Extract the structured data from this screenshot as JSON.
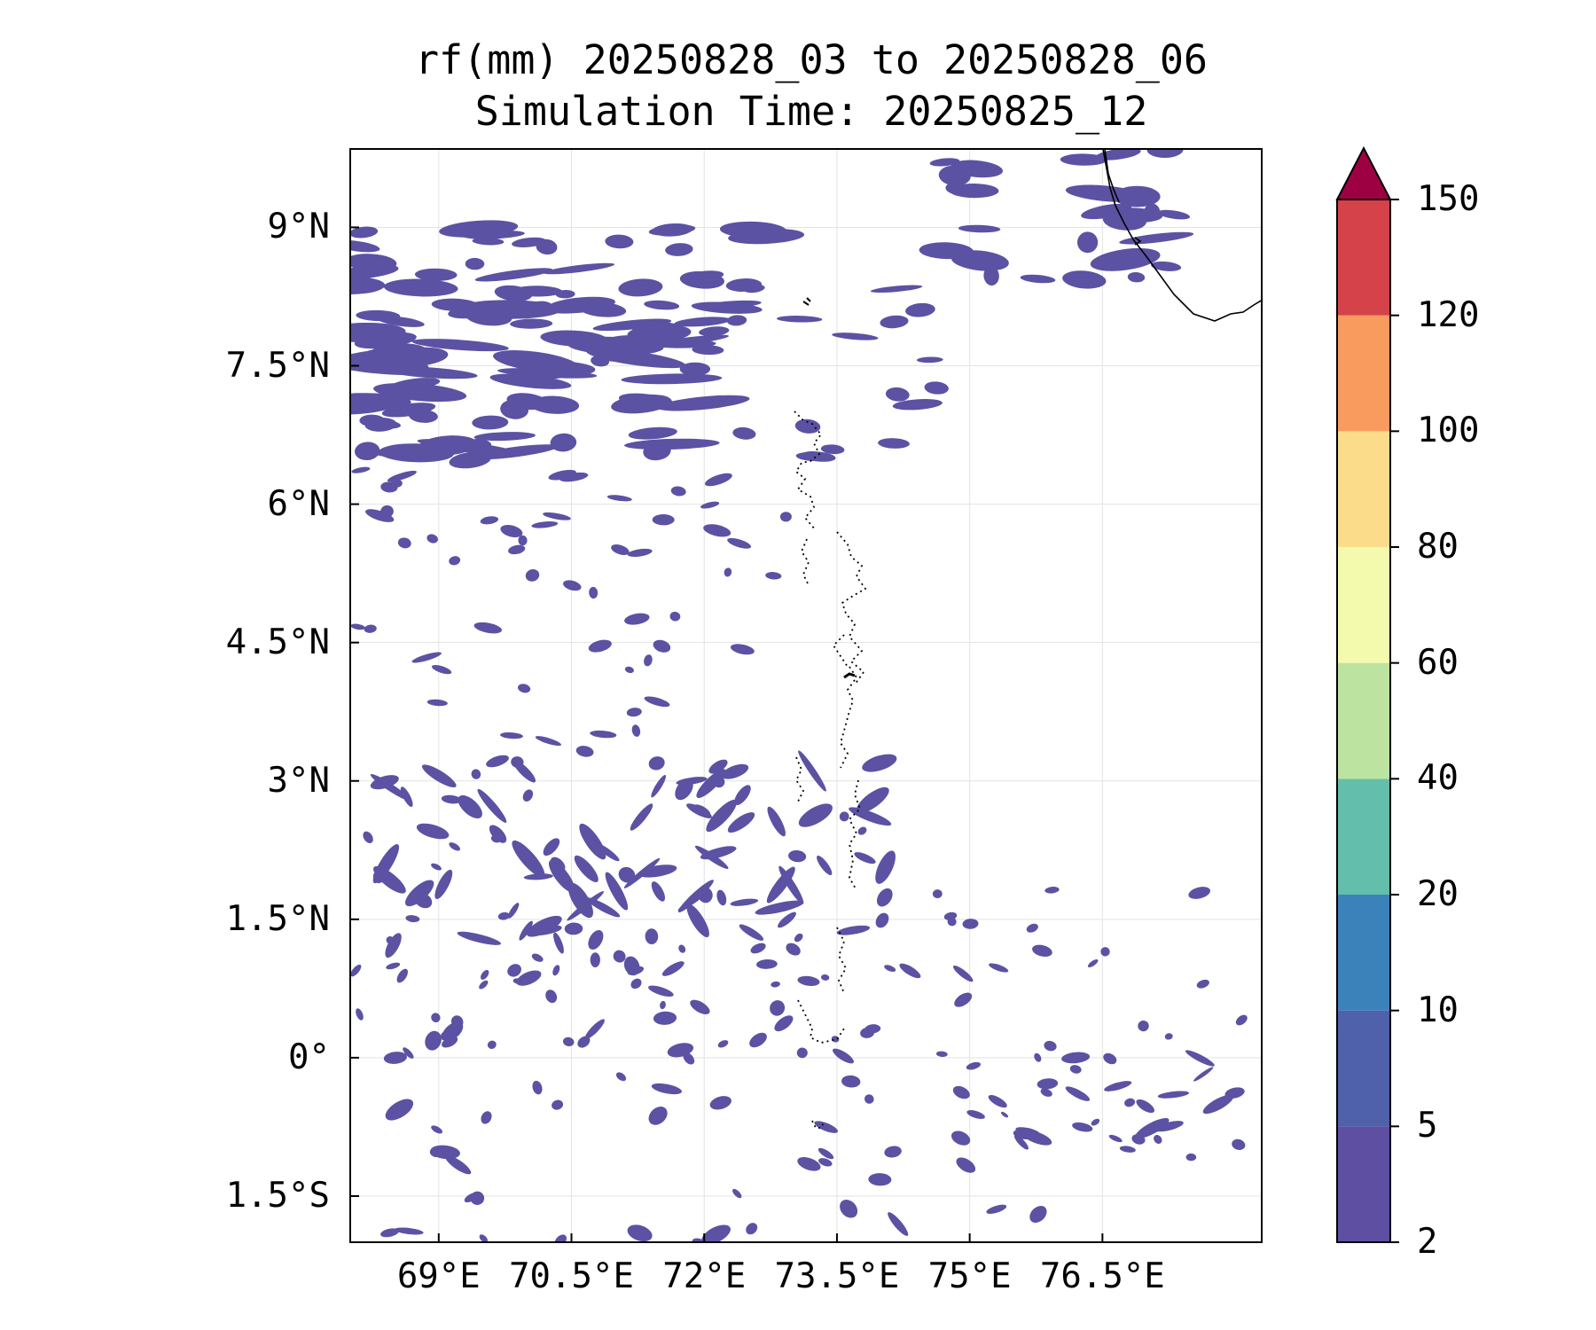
{
  "map": {
    "title_line1": "rf(mm) 20250828_03 to 20250828_06",
    "title_line2": "Simulation Time: 20250825_12",
    "extent": {
      "lon_min": 68.0,
      "lon_max": 78.3,
      "lat_min": -2.0,
      "lat_max": 9.85
    },
    "lat_ticks": [
      {
        "value": 9.0,
        "label": "9°N"
      },
      {
        "value": 7.5,
        "label": "7.5°N"
      },
      {
        "value": 6.0,
        "label": "6°N"
      },
      {
        "value": 4.5,
        "label": "4.5°N"
      },
      {
        "value": 3.0,
        "label": "3°N"
      },
      {
        "value": 1.5,
        "label": "1.5°N"
      },
      {
        "value": 0.0,
        "label": "0°"
      },
      {
        "value": -1.5,
        "label": "1.5°S"
      }
    ],
    "lon_ticks": [
      {
        "value": 69.0,
        "label": "69°E"
      },
      {
        "value": 70.5,
        "label": "70.5°E"
      },
      {
        "value": 72.0,
        "label": "72°E"
      },
      {
        "value": 73.5,
        "label": "73.5°E"
      },
      {
        "value": 75.0,
        "label": "75°E"
      },
      {
        "value": 76.5,
        "label": "76.5°E"
      }
    ],
    "gridlines": true,
    "rain_color": "#5b52a3",
    "coastline_color": "#000000",
    "island_outline_style": "dotted"
  },
  "colorbar": {
    "levels": [
      "2",
      "5",
      "10",
      "20",
      "40",
      "60",
      "80",
      "100",
      "120",
      "150"
    ],
    "colors": [
      "#5e4fa2",
      "#4f61aa",
      "#3b82bb",
      "#63bfab",
      "#bce3a0",
      "#f4faad",
      "#fbdc8b",
      "#f99b5e",
      "#d6424a"
    ],
    "extend_color": "#9e0142",
    "extend": "max"
  }
}
